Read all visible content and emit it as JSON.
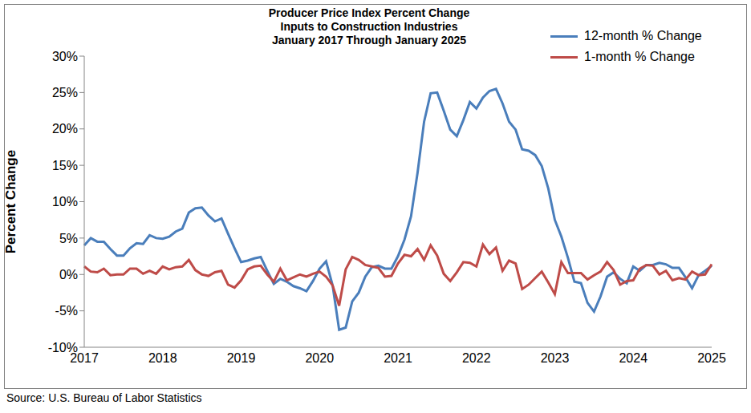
{
  "chart_data": {
    "type": "line",
    "title": "Producer Price Index Percent Change",
    "subtitle": [
      "Inputs to Construction Industries",
      "January 2017 Through January 2025"
    ],
    "y_label": "Percent Change",
    "annotations": [
      "Source: U.S. Bureau of Labor Statistics"
    ],
    "legend": "upper right",
    "grid": false,
    "categories": [
      "2017",
      null,
      null,
      null,
      null,
      null,
      null,
      null,
      null,
      null,
      null,
      null,
      "2018",
      null,
      null,
      null,
      null,
      null,
      null,
      null,
      null,
      null,
      null,
      null,
      "2019",
      null,
      null,
      null,
      null,
      null,
      null,
      null,
      null,
      null,
      null,
      null,
      "2020",
      null,
      null,
      null,
      null,
      null,
      null,
      null,
      null,
      null,
      null,
      null,
      "2021",
      null,
      null,
      null,
      null,
      null,
      null,
      null,
      null,
      null,
      null,
      null,
      "2022",
      null,
      null,
      null,
      null,
      null,
      null,
      null,
      null,
      null,
      null,
      null,
      "2023",
      null,
      null,
      null,
      null,
      null,
      null,
      null,
      null,
      null,
      null,
      null,
      "2024",
      null,
      null,
      null,
      null,
      null,
      null,
      null,
      null,
      null,
      null,
      null,
      "2025"
    ],
    "ylim": [
      -10,
      30
    ],
    "yticks": [
      {
        "value": -10,
        "label": "-10%"
      },
      {
        "value": -5,
        "label": "-5%"
      },
      {
        "value": 0,
        "label": "0%"
      },
      {
        "value": 5,
        "label": "5%"
      },
      {
        "value": 10,
        "label": "10%"
      },
      {
        "value": 15,
        "label": "15%"
      },
      {
        "value": 20,
        "label": "20%"
      },
      {
        "value": 25,
        "label": "25%"
      },
      {
        "value": 30,
        "label": "30%"
      }
    ],
    "series": [
      {
        "name": "12-month % Change",
        "color": "#4a7ebb",
        "values": [
          4.0,
          5.0,
          4.5,
          4.5,
          3.5,
          2.6,
          2.6,
          3.6,
          4.3,
          4.2,
          5.4,
          5.0,
          4.9,
          5.2,
          5.9,
          6.3,
          8.5,
          9.1,
          9.2,
          8.1,
          7.3,
          7.7,
          5.6,
          3.6,
          1.7,
          1.9,
          2.2,
          2.4,
          0.5,
          -1.3,
          -0.6,
          -1.0,
          -1.6,
          -1.9,
          -2.3,
          -0.9,
          0.8,
          1.8,
          -1.5,
          -7.6,
          -7.3,
          -3.7,
          -2.5,
          -0.3,
          1.0,
          1.2,
          0.8,
          0.8,
          2.5,
          4.8,
          8.0,
          14.0,
          21.0,
          24.9,
          25.0,
          22.5,
          19.9,
          19.0,
          21.2,
          23.7,
          22.8,
          24.3,
          25.2,
          25.5,
          23.5,
          21.0,
          19.9,
          17.2,
          17.0,
          16.4,
          14.9,
          11.8,
          7.5,
          5.2,
          2.3,
          -1.0,
          -1.2,
          -3.9,
          -5.1,
          -3.0,
          -0.3,
          0.3,
          -0.6,
          -1.2,
          1.1,
          0.5,
          1.3,
          1.3,
          1.6,
          1.4,
          0.9,
          0.9,
          -0.4,
          -1.9,
          -0.1,
          0.5,
          1.2
        ]
      },
      {
        "name": "1-month % Change",
        "color": "#be4b48",
        "values": [
          1.1,
          0.4,
          0.3,
          0.8,
          -0.1,
          0.0,
          0.0,
          0.8,
          0.8,
          0.1,
          0.5,
          0.1,
          1.1,
          0.7,
          1.0,
          1.1,
          2.0,
          0.6,
          0.0,
          -0.2,
          0.3,
          0.5,
          -1.4,
          -1.8,
          -0.8,
          0.7,
          1.1,
          1.2,
          0.0,
          -1.0,
          0.8,
          -0.8,
          -0.4,
          0.0,
          -0.3,
          0.1,
          0.4,
          -0.3,
          -1.5,
          -4.3,
          0.7,
          2.4,
          2.0,
          1.3,
          1.1,
          0.9,
          -0.3,
          -0.2,
          1.5,
          2.7,
          2.5,
          3.5,
          2.0,
          4.0,
          2.6,
          0.1,
          -0.9,
          0.3,
          1.7,
          1.6,
          1.1,
          4.1,
          2.8,
          3.7,
          0.5,
          1.9,
          1.5,
          -2.0,
          -1.4,
          -0.5,
          0.4,
          -1.1,
          -2.7,
          1.7,
          0.2,
          0.2,
          0.2,
          -0.7,
          -0.1,
          0.4,
          1.7,
          0.6,
          -1.4,
          -0.9,
          -0.8,
          0.8,
          1.3,
          1.2,
          0.0,
          0.5,
          -0.8,
          -0.5,
          -0.7,
          0.4,
          -0.1,
          0.0,
          1.4
        ]
      }
    ]
  }
}
